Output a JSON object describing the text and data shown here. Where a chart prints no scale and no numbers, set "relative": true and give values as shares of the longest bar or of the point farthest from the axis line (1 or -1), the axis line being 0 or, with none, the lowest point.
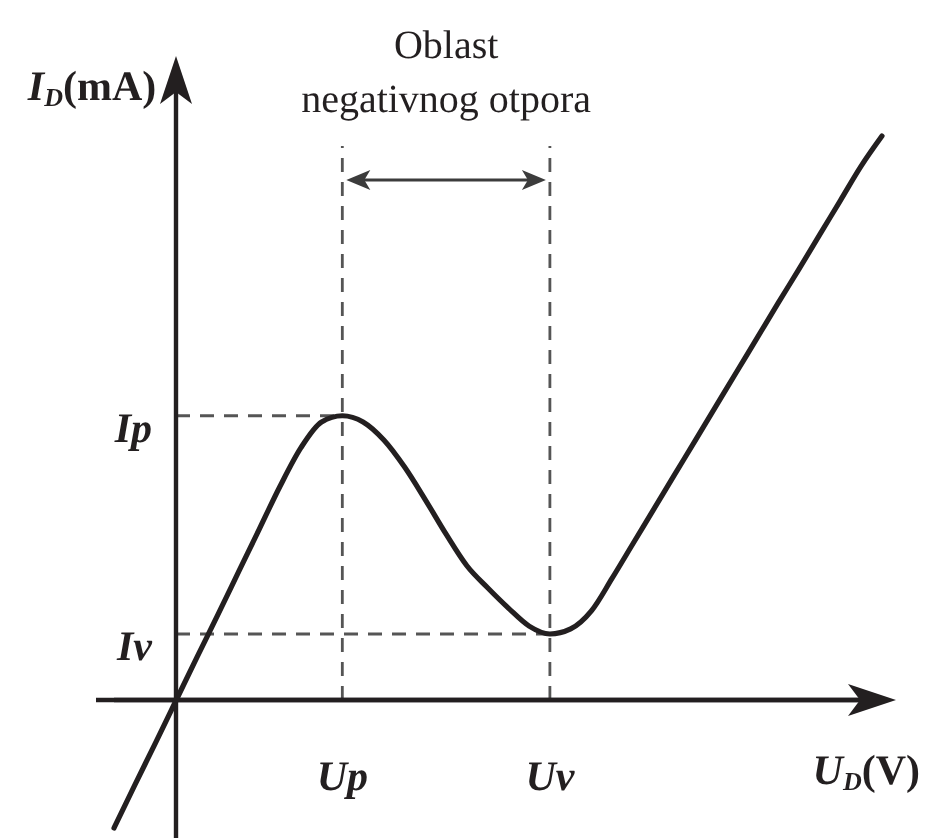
{
  "chart_data": {
    "type": "line",
    "relative": true,
    "xlabel": "U$_{D}$(V)",
    "ylabel": "I$_{D}$(mA)",
    "categories": [
      null,
      null,
      null,
      null,
      null,
      null,
      null,
      null,
      null,
      null,
      null,
      "Up",
      null,
      null,
      null,
      null,
      null,
      null,
      null,
      null,
      null,
      "Uv",
      null,
      null,
      null,
      null,
      null,
      null,
      null,
      null,
      null,
      null,
      null,
      null,
      null,
      null,
      null,
      null
    ],
    "values": [
      -0.227,
      -0.151,
      -0.076,
      0,
      0.076,
      0.151,
      0.227,
      0.303,
      0.379,
      0.447,
      0.493,
      0.504,
      0.493,
      0.461,
      0.413,
      0.355,
      0.294,
      0.238,
      0.199,
      0.163,
      0.131,
      0.117,
      0.126,
      0.158,
      0.216,
      0.277,
      0.338,
      0.399,
      0.46,
      0.521,
      0.582,
      0.643,
      0.704,
      0.764,
      0.825,
      0.886,
      0.947,
      1
    ],
    "color": "#231f20",
    "ref_lines": [
      {
        "axis": "x",
        "value": "Up",
        "color": "#555555",
        "line_style": "dashed"
      },
      {
        "axis": "x",
        "value": "Uv",
        "color": "#555555",
        "line_style": "dashed"
      },
      {
        "axis": "y",
        "value": 0.504,
        "label": "Ip",
        "color": "#555555",
        "line_style": "dashed"
      },
      {
        "axis": "y",
        "value": 0.117,
        "label": "Iv",
        "color": "#555555",
        "line_style": "dashed"
      }
    ],
    "annotations": [
      "Oblast negativnog otpora"
    ]
  }
}
